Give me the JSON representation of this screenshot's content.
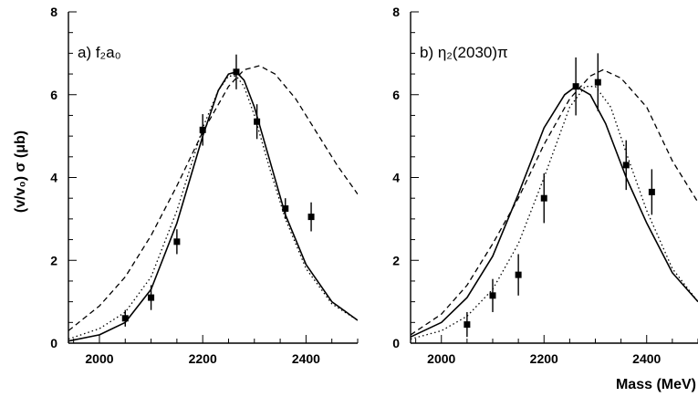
{
  "figure": {
    "ylabel": "(v/v₀) σ (μb)",
    "xlabel": "Mass (MeV)"
  },
  "chart_data": [
    {
      "type": "scatter",
      "panel_label": "a)  f₂a₀",
      "xlim": [
        1940,
        2500
      ],
      "ylim": [
        0,
        8
      ],
      "xticks": [
        2000,
        2200,
        2400
      ],
      "yticks": [
        0,
        2,
        4,
        6,
        8
      ],
      "grid": false,
      "points": [
        {
          "x": 2050,
          "y": 0.6,
          "err": 0.2
        },
        {
          "x": 2100,
          "y": 1.1,
          "err": 0.3
        },
        {
          "x": 2150,
          "y": 2.45,
          "err": 0.3
        },
        {
          "x": 2200,
          "y": 5.15,
          "err": 0.38
        },
        {
          "x": 2265,
          "y": 6.55,
          "err": 0.42
        },
        {
          "x": 2305,
          "y": 5.35,
          "err": 0.42
        },
        {
          "x": 2360,
          "y": 3.25,
          "err": 0.25
        },
        {
          "x": 2410,
          "y": 3.05,
          "err": 0.35
        }
      ],
      "curves": [
        {
          "style": "solid",
          "x": [
            1940,
            2000,
            2050,
            2100,
            2150,
            2200,
            2230,
            2250,
            2265,
            2280,
            2300,
            2330,
            2360,
            2400,
            2450,
            2500
          ],
          "y": [
            0.05,
            0.2,
            0.5,
            1.3,
            2.9,
            5.0,
            6.1,
            6.5,
            6.55,
            6.35,
            5.7,
            4.4,
            3.1,
            1.9,
            1.0,
            0.55
          ]
        },
        {
          "style": "dotted",
          "x": [
            1940,
            2000,
            2050,
            2100,
            2150,
            2200,
            2230,
            2250,
            2265,
            2280,
            2300,
            2330,
            2360,
            2400,
            2450,
            2500
          ],
          "y": [
            0.1,
            0.35,
            0.75,
            1.6,
            3.2,
            5.2,
            6.1,
            6.45,
            6.45,
            6.2,
            5.5,
            4.2,
            3.0,
            1.8,
            0.95,
            0.55
          ]
        },
        {
          "style": "dashed",
          "x": [
            1940,
            2000,
            2050,
            2100,
            2150,
            2200,
            2250,
            2280,
            2310,
            2340,
            2380,
            2420,
            2460,
            2500
          ],
          "y": [
            0.3,
            0.9,
            1.6,
            2.6,
            3.8,
            5.1,
            6.2,
            6.6,
            6.7,
            6.5,
            5.9,
            5.1,
            4.3,
            3.6
          ]
        }
      ]
    },
    {
      "type": "scatter",
      "panel_label": "b)  η₂(2030)π",
      "xlim": [
        1940,
        2500
      ],
      "ylim": [
        0,
        8
      ],
      "xticks": [
        2000,
        2200,
        2400
      ],
      "yticks": [
        0,
        2,
        4,
        6,
        8
      ],
      "grid": false,
      "points": [
        {
          "x": 2050,
          "y": 0.45,
          "err": 0.3
        },
        {
          "x": 2100,
          "y": 1.15,
          "err": 0.4
        },
        {
          "x": 2150,
          "y": 1.65,
          "err": 0.5
        },
        {
          "x": 2200,
          "y": 3.5,
          "err": 0.6
        },
        {
          "x": 2262,
          "y": 6.2,
          "err": 0.7
        },
        {
          "x": 2305,
          "y": 6.3,
          "err": 0.7
        },
        {
          "x": 2360,
          "y": 4.3,
          "err": 0.6
        },
        {
          "x": 2410,
          "y": 3.65,
          "err": 0.55
        }
      ],
      "curves": [
        {
          "style": "solid",
          "x": [
            1940,
            2000,
            2050,
            2100,
            2150,
            2200,
            2240,
            2262,
            2290,
            2320,
            2360,
            2400,
            2450,
            2500
          ],
          "y": [
            0.15,
            0.5,
            1.1,
            2.1,
            3.6,
            5.2,
            6.0,
            6.2,
            6.0,
            5.3,
            4.0,
            2.9,
            1.7,
            1.0
          ]
        },
        {
          "style": "dotted",
          "x": [
            1940,
            2000,
            2050,
            2100,
            2150,
            2200,
            2250,
            2280,
            2300,
            2330,
            2360,
            2400,
            2450,
            2500
          ],
          "y": [
            0.1,
            0.3,
            0.65,
            1.3,
            2.4,
            4.0,
            5.7,
            6.2,
            6.2,
            5.7,
            4.6,
            3.2,
            1.8,
            1.0
          ]
        },
        {
          "style": "dashed",
          "x": [
            1940,
            2000,
            2050,
            2100,
            2150,
            2200,
            2250,
            2290,
            2315,
            2350,
            2400,
            2450,
            2500
          ],
          "y": [
            0.2,
            0.7,
            1.4,
            2.4,
            3.5,
            4.8,
            5.9,
            6.45,
            6.6,
            6.4,
            5.7,
            4.4,
            3.4
          ]
        }
      ]
    }
  ]
}
